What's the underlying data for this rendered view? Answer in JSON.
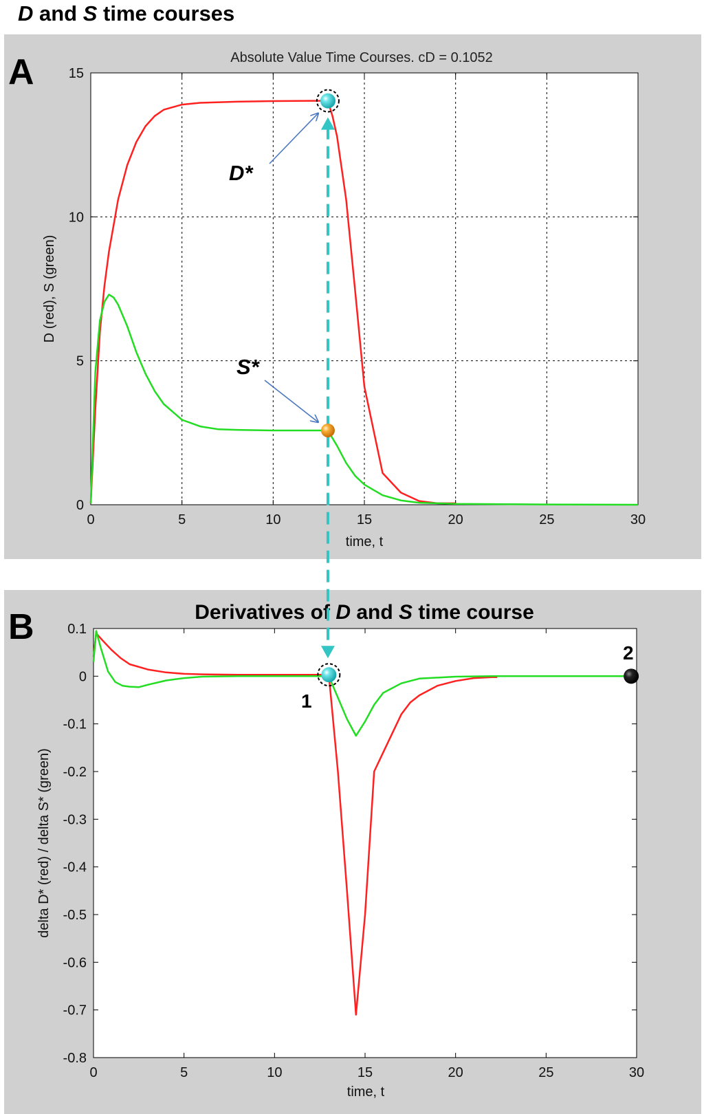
{
  "figure": {
    "title_parts": [
      "D",
      " and ",
      "S",
      " time courses"
    ]
  },
  "colors": {
    "d_series": "#ff2020",
    "s_series": "#22dd22",
    "connector": "#33c4c4",
    "pointer": "#4a78c0",
    "marker_cyan": "#33d0d6",
    "marker_orange": "#f39a1a",
    "marker_black": "#111111"
  },
  "panel_a": {
    "letter": "A",
    "annotations": {
      "d_star": "D*",
      "s_star": "S*"
    }
  },
  "panel_b": {
    "letter": "B",
    "title_parts": [
      "Derivatives of ",
      "D",
      " and ",
      "S",
      " time course"
    ],
    "markers": {
      "start_label": "1",
      "end_label": "2"
    }
  },
  "chart_data": [
    {
      "id": "A",
      "type": "line",
      "title": "Absolute Value Time Courses. cD = 0.1052",
      "xlabel": "time, t",
      "ylabel": "D (red), S (green)",
      "xlim": [
        0,
        30
      ],
      "ylim": [
        0,
        15
      ],
      "xticks": [
        0,
        5,
        10,
        15,
        20,
        25,
        30
      ],
      "yticks": [
        0,
        5,
        10,
        15
      ],
      "xtick_labels": [
        "0",
        "5",
        "10",
        "15",
        "20",
        "25",
        "30"
      ],
      "ytick_labels": [
        "0",
        "5",
        "10",
        "15"
      ],
      "grid": true,
      "series": [
        {
          "name": "D",
          "color": "#ff2020",
          "x": [
            0,
            0.25,
            0.5,
            0.75,
            1,
            1.25,
            1.5,
            2,
            2.5,
            3,
            3.5,
            4,
            5,
            6,
            8,
            10,
            12,
            13,
            13.25,
            13.5,
            14,
            14.5,
            15,
            16,
            17,
            18,
            19,
            19.5,
            20
          ],
          "y": [
            0.05,
            3.3,
            6.0,
            7.6,
            8.8,
            9.7,
            10.6,
            11.8,
            12.6,
            13.15,
            13.5,
            13.72,
            13.9,
            13.96,
            14.0,
            14.02,
            14.03,
            14.03,
            13.5,
            12.8,
            10.6,
            7.4,
            4.1,
            1.1,
            0.42,
            0.13,
            0.05,
            0.05,
            0.05
          ]
        },
        {
          "name": "S",
          "color": "#22dd22",
          "x": [
            0,
            0.25,
            0.5,
            0.75,
            1,
            1.25,
            1.5,
            2,
            2.5,
            3,
            3.5,
            4,
            5,
            6,
            7,
            8,
            10,
            12,
            13,
            13.5,
            14,
            14.5,
            15,
            16,
            17,
            18,
            20,
            25,
            30
          ],
          "y": [
            0.05,
            4.6,
            6.4,
            7.05,
            7.3,
            7.2,
            6.95,
            6.2,
            5.3,
            4.55,
            3.95,
            3.5,
            2.95,
            2.72,
            2.62,
            2.6,
            2.58,
            2.58,
            2.58,
            2.05,
            1.45,
            1.0,
            0.7,
            0.33,
            0.15,
            0.07,
            0.03,
            0.01,
            0.0
          ]
        }
      ],
      "points": [
        {
          "label": "D*",
          "x": 13,
          "y": 14.03,
          "color": "#33d0d6"
        },
        {
          "label": "S*",
          "x": 13,
          "y": 2.58,
          "color": "#f39a1a"
        }
      ]
    },
    {
      "id": "B",
      "type": "line",
      "title": "Derivatives of D and S time course",
      "xlabel": "time, t",
      "ylabel": "delta D* (red) / delta S* (green)",
      "xlim": [
        0,
        30
      ],
      "ylim": [
        -0.8,
        0.1
      ],
      "xticks": [
        0,
        5,
        10,
        15,
        20,
        25,
        30
      ],
      "yticks": [
        0.1,
        0,
        -0.1,
        -0.2,
        -0.3,
        -0.4,
        -0.5,
        -0.6,
        -0.7,
        -0.8
      ],
      "xtick_labels": [
        "0",
        "5",
        "10",
        "15",
        "20",
        "25",
        "30"
      ],
      "ytick_labels": [
        "0.1",
        "0",
        "-0.1",
        "-0.2",
        "-0.3",
        "-0.4",
        "-0.5",
        "-0.6",
        "-0.7",
        "-0.8"
      ],
      "grid": false,
      "series": [
        {
          "name": "delta D*",
          "color": "#ff2020",
          "x": [
            0,
            0.15,
            0.5,
            1,
            1.5,
            2,
            3,
            4,
            5,
            6,
            8,
            10,
            12,
            13,
            13.5,
            14,
            14.5,
            15,
            15.5,
            16,
            17,
            17.5,
            18,
            19,
            20,
            21,
            22,
            22.3
          ],
          "y": [
            0.04,
            0.09,
            0.075,
            0.055,
            0.038,
            0.025,
            0.014,
            0.008,
            0.005,
            0.004,
            0.003,
            0.003,
            0.003,
            0.003,
            -0.2,
            -0.45,
            -0.71,
            -0.5,
            -0.2,
            -0.16,
            -0.08,
            -0.055,
            -0.04,
            -0.02,
            -0.01,
            -0.004,
            -0.002,
            -0.002
          ]
        },
        {
          "name": "delta S*",
          "color": "#22dd22",
          "x": [
            0,
            0.15,
            0.4,
            0.8,
            1.2,
            1.6,
            2,
            2.5,
            3,
            4,
            5,
            6,
            8,
            10,
            12,
            13,
            13.5,
            14,
            14.5,
            15,
            15.5,
            16,
            17,
            18,
            20,
            22,
            25,
            30
          ],
          "y": [
            0.03,
            0.095,
            0.06,
            0.01,
            -0.012,
            -0.02,
            -0.022,
            -0.023,
            -0.018,
            -0.009,
            -0.004,
            -0.001,
            0.0,
            0.0,
            0.0,
            0.0,
            -0.045,
            -0.09,
            -0.125,
            -0.095,
            -0.06,
            -0.035,
            -0.015,
            -0.005,
            -0.001,
            0.0,
            0.0,
            0.0
          ]
        }
      ],
      "points": [
        {
          "label": "1",
          "x": 13,
          "y": 0.003,
          "color": "#33d0d6"
        },
        {
          "label": "2",
          "x": 29.7,
          "y": 0.0,
          "color": "#111111"
        }
      ]
    }
  ]
}
